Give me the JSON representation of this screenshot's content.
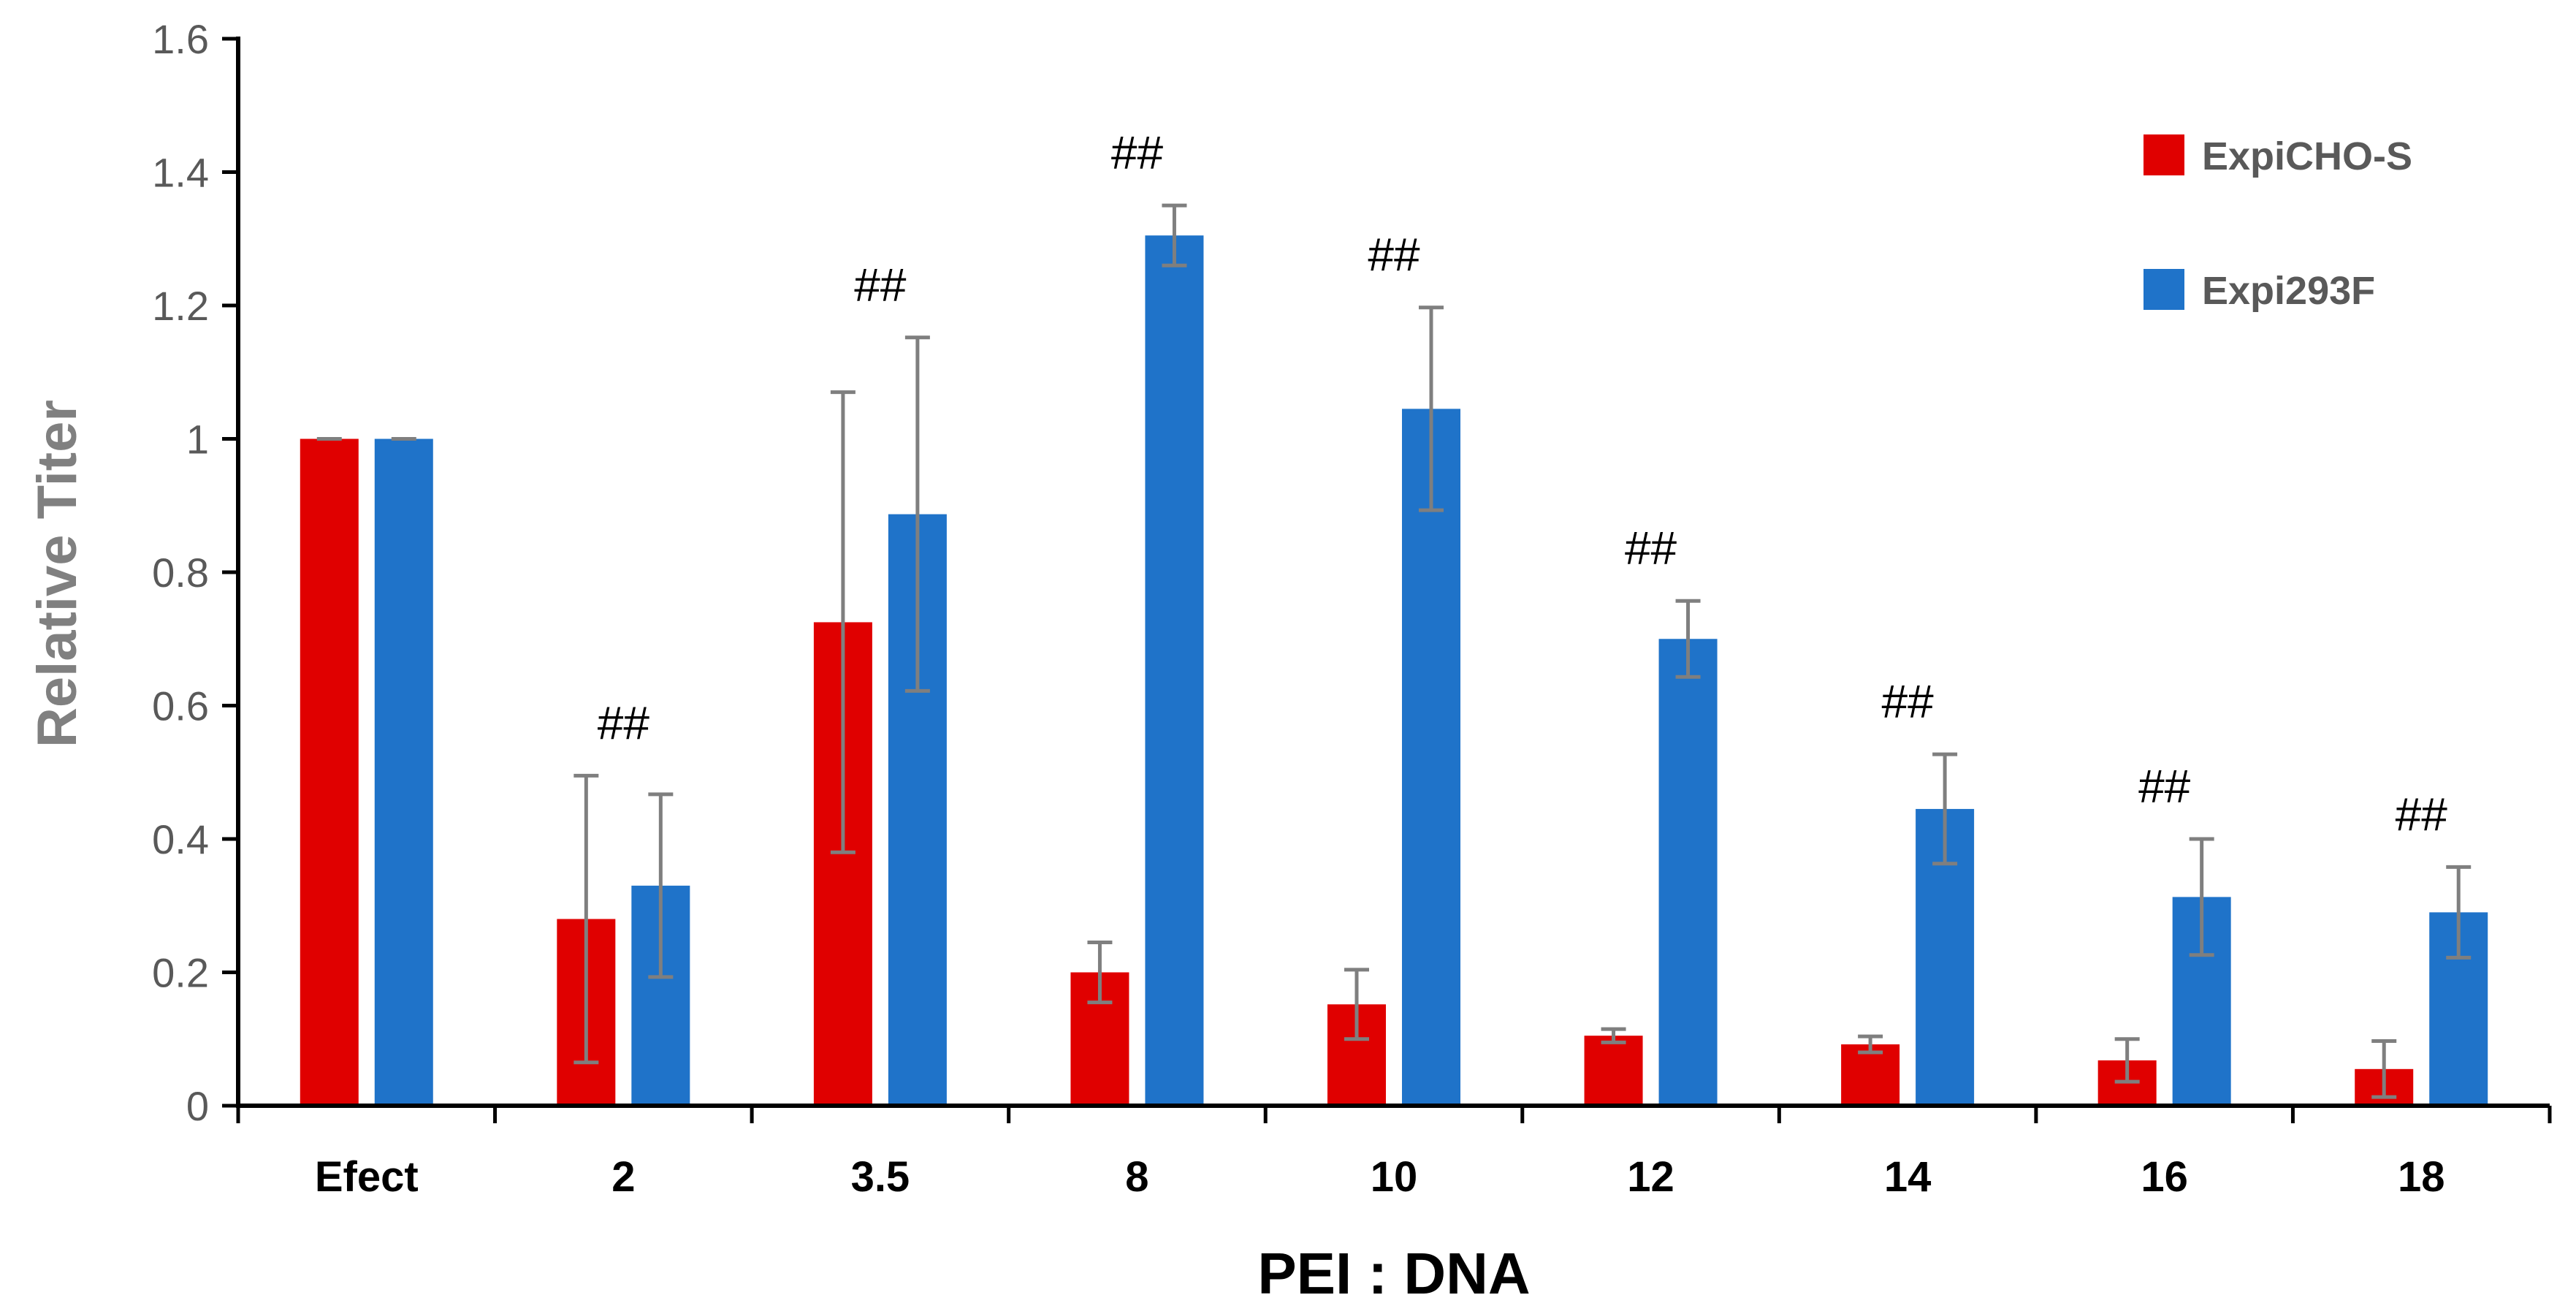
{
  "chart_data": {
    "type": "bar",
    "title": "",
    "xlabel": "PEI : DNA",
    "ylabel": "Relative Titer",
    "ylim": [
      0,
      1.6
    ],
    "yticks": [
      "0",
      "0.2",
      "0.4",
      "0.6",
      "0.8",
      "1",
      "1.2",
      "1.4",
      "1.6"
    ],
    "grid": false,
    "legend_position": "top-right",
    "categories": [
      "Efect",
      "2",
      "3.5",
      "8",
      "10",
      "12",
      "14",
      "16",
      "18"
    ],
    "series": [
      {
        "name": "ExpiCHO-S",
        "color": "#e00000",
        "values": [
          1.0,
          0.28,
          0.725,
          0.2,
          0.152,
          0.105,
          0.092,
          0.068,
          0.055
        ],
        "errors": [
          0.0,
          0.215,
          0.345,
          0.045,
          0.052,
          0.01,
          0.012,
          0.032,
          0.042
        ]
      },
      {
        "name": "Expi293F",
        "color": "#1f73c9",
        "values": [
          1.0,
          0.33,
          0.887,
          1.305,
          1.045,
          0.7,
          0.445,
          0.313,
          0.29
        ],
        "errors": [
          0.0,
          0.137,
          0.265,
          0.045,
          0.152,
          0.057,
          0.082,
          0.087,
          0.068
        ]
      }
    ],
    "annotations": [
      {
        "category": "2",
        "text": "##"
      },
      {
        "category": "3.5",
        "text": "##"
      },
      {
        "category": "8",
        "text": "##"
      },
      {
        "category": "10",
        "text": "##"
      },
      {
        "category": "12",
        "text": "##"
      },
      {
        "category": "14",
        "text": "##"
      },
      {
        "category": "16",
        "text": "##"
      },
      {
        "category": "18",
        "text": "##"
      }
    ]
  }
}
